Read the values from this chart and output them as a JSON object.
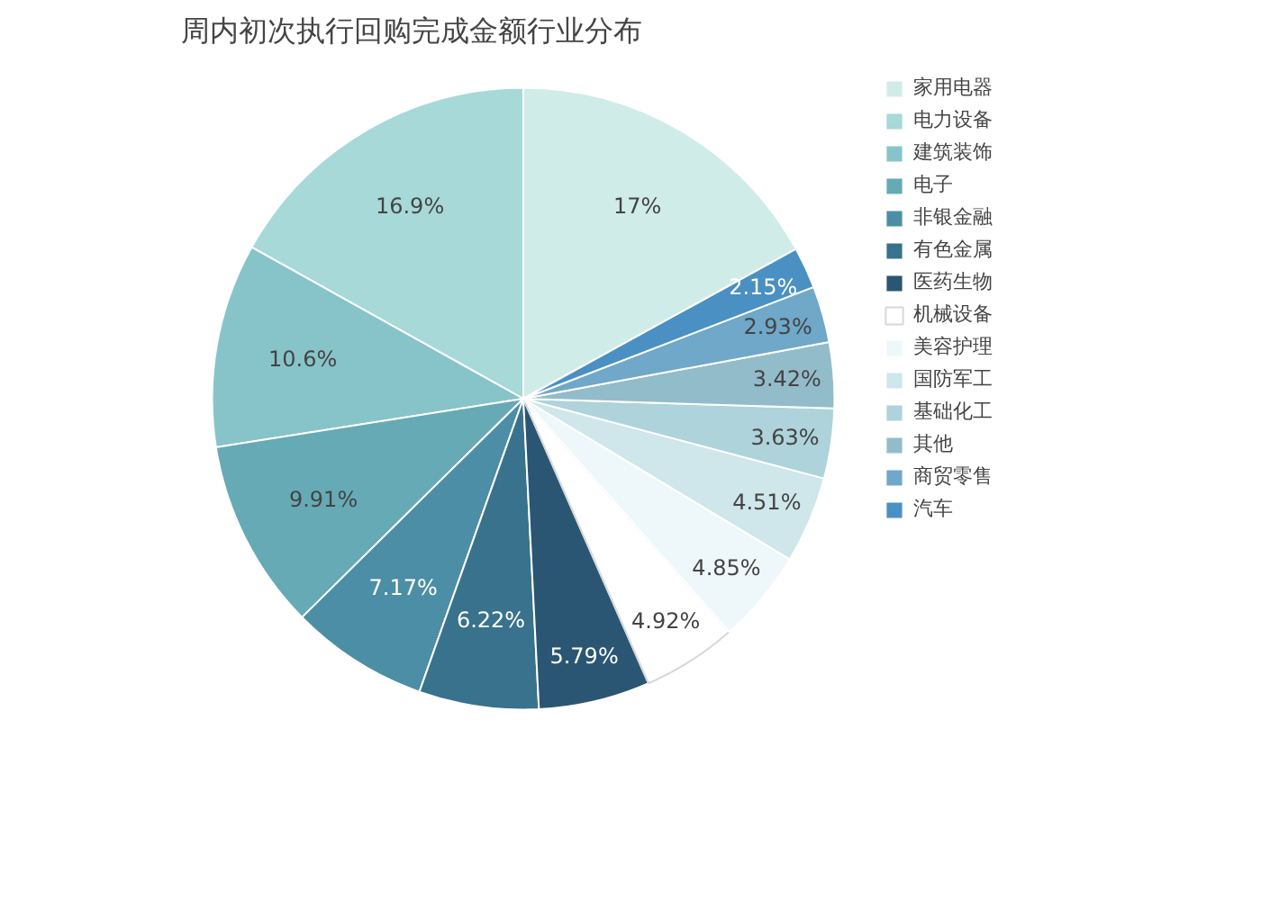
{
  "chart_data": {
    "type": "pie",
    "title": "周内初次执行回购完成金额行业分布",
    "categories": [
      "家用电器",
      "电力设备",
      "建筑装饰",
      "电子",
      "非银金融",
      "有色金属",
      "医药生物",
      "机械设备",
      "美容护理",
      "国防军工",
      "基础化工",
      "其他",
      "商贸零售",
      "汽车"
    ],
    "values": [
      17,
      16.9,
      10.6,
      9.91,
      7.17,
      6.22,
      5.79,
      4.92,
      4.85,
      4.51,
      3.63,
      3.42,
      2.93,
      2.15
    ],
    "colors": [
      "#d0ece8",
      "#a6d9d8",
      "#87c4c9",
      "#66aab6",
      "#4b8ea5",
      "#38728c",
      "#2a5673",
      "#ffffff",
      "#eef7f9",
      "#cfe6ea",
      "#aed3da",
      "#93bccb",
      "#6fa8c9",
      "#4a90c2"
    ],
    "value_labels": [
      "17%",
      "16.9%",
      "10.6%",
      "9.91%",
      "7.17%",
      "6.22%",
      "5.79%",
      "4.92%",
      "4.85%",
      "4.51%",
      "3.63%",
      "3.42%",
      "2.93%",
      "2.15%"
    ],
    "legend": "right"
  }
}
